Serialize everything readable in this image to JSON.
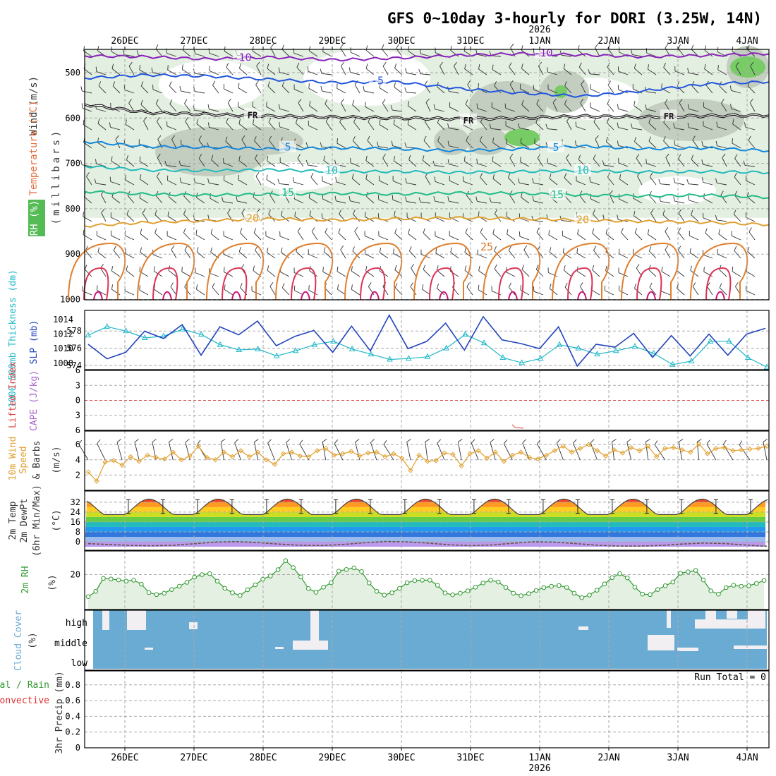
{
  "title": "GFS 0~10day 3-hourly for DORI (3.25W, 14N)",
  "year_label": "2026",
  "date_labels": [
    "26DEC",
    "27DEC",
    "28DEC",
    "29DEC",
    "30DEC",
    "31DEC",
    "1JAN",
    "2JAN",
    "3JAN",
    "4JAN"
  ],
  "panel_labels": {
    "wind": "Wind (m/s)",
    "temperature": "Temperature (°C)",
    "rh": "RH (%)",
    "millibars": "(millibars)",
    "thickness": "1000-500mb Thickness (dm)",
    "slp": "SLP (mb)",
    "lifted_index": "Lifted Index",
    "cape": "CAPE (J/kg)",
    "wind10_a": "10m Wind",
    "wind10_b": "Speed",
    "wind10_c": "& Barbs",
    "wind10_unit": "(m/s)",
    "temp2m_a": "2m Temp",
    "temp2m_b": "2m DewPt",
    "temp2m_c": "(6hr Min/Max)",
    "temp2m_unit": "(°C)",
    "rh2m": "2m RH",
    "rh2m_unit": "(%)",
    "cloud": "Cloud Cover",
    "cloud_unit": "(%)",
    "precip_a": "Total / Rain",
    "precip_b": "Convective",
    "precip_c": "3hr Precip (mm)",
    "run_total": "Run Total = 0"
  },
  "chart_data": [
    {
      "type": "line",
      "name": "upper-air cross-section",
      "ylabel": "(millibars)",
      "y_ticks": [
        500,
        600,
        700,
        800,
        900,
        1000
      ],
      "ylim": [
        450,
        1000
      ],
      "isotherm_labels": [
        "-10",
        "-10",
        "-5",
        "-5",
        "FR",
        "FR",
        "FR",
        "5",
        "5",
        "10",
        "10",
        "15",
        "15",
        "20",
        "20",
        "25"
      ],
      "isotherms": [
        {
          "value": "-10",
          "mb": [
            463,
            465,
            470,
            466,
            472,
            468,
            462,
            458,
            461,
            465,
            462,
            458
          ]
        },
        {
          "value": "-5",
          "mb": [
            512,
            505,
            508,
            515,
            522,
            520,
            535,
            545,
            552,
            540,
            525,
            520
          ]
        },
        {
          "value": "FR",
          "mb": [
            570,
            588,
            592,
            596,
            598,
            600,
            602,
            600,
            596,
            598,
            595,
            594
          ]
        },
        {
          "value": "5",
          "mb": [
            652,
            663,
            665,
            668,
            666,
            668,
            672,
            668,
            662,
            668,
            666,
            672
          ]
        },
        {
          "value": "10",
          "mb": [
            706,
            715,
            716,
            714,
            718,
            718,
            720,
            718,
            716,
            719,
            718,
            720
          ]
        },
        {
          "value": "15",
          "mb": [
            762,
            768,
            770,
            768,
            766,
            768,
            765,
            766,
            770,
            772,
            770,
            775
          ]
        },
        {
          "value": "20",
          "mb": [
            838,
            830,
            826,
            822,
            825,
            822,
            820,
            822,
            825,
            828,
            830,
            835
          ]
        }
      ]
    },
    {
      "type": "line",
      "name": "thickness and slp",
      "left_ticks": [
        574,
        576,
        578
      ],
      "right_ticks": [
        1008,
        1010,
        1012,
        1014
      ],
      "series": [
        {
          "name": "1000-500mb Thickness (dm)",
          "values": [
            577.5,
            578.5,
            578.0,
            577.2,
            577.4,
            578.2,
            577.6,
            576.4,
            575.8,
            575.9,
            575.1,
            575.7,
            576.4,
            576.8,
            575.9,
            575.3,
            574.7,
            574.8,
            575.0,
            576.0,
            577.6,
            576.6,
            574.9,
            574.3,
            574.8,
            576.4,
            576.0,
            575.3,
            575.7,
            576.2,
            575.4,
            574.1,
            574.5,
            576.8,
            576.8,
            574.9,
            573.8
          ]
        },
        {
          "name": "SLP (mb)",
          "values": [
            1010.6,
            1008.6,
            1009.5,
            1012.4,
            1011.4,
            1013.3,
            1009.1,
            1013.0,
            1011.9,
            1013.8,
            1010.4,
            1011.7,
            1012.5,
            1009.5,
            1013.1,
            1009.7,
            1014.6,
            1010.0,
            1011.0,
            1013.5,
            1009.8,
            1014.4,
            1011.2,
            1010.7,
            1010.0,
            1013.0,
            1007.6,
            1010.6,
            1010.2,
            1012.1,
            1008.8,
            1011.8,
            1009.0,
            1012.0,
            1009.1,
            1012.0,
            1012.8
          ]
        }
      ]
    },
    {
      "type": "line",
      "name": "lifted index and cape",
      "y_ticks": [
        -6,
        -3,
        0,
        3,
        6
      ],
      "ylim": [
        -6,
        6
      ],
      "series": [
        {
          "name": "Lifted Index",
          "values": []
        },
        {
          "name": "CAPE (J/kg)",
          "values": []
        }
      ]
    },
    {
      "type": "line",
      "name": "10m wind speed",
      "y_ticks": [
        2,
        4,
        6
      ],
      "ylim": [
        0,
        6.6
      ],
      "series": [
        {
          "name": "10m Wind Speed (m/s)",
          "values": [
            2.4,
            1.2,
            3.7,
            3.9,
            3.3,
            4.4,
            3.8,
            4.6,
            4.3,
            4.1,
            5.0,
            4.0,
            4.5,
            5.8,
            4.3,
            4.0,
            5.0,
            4.4,
            5.2,
            4.4,
            5.0,
            4.0,
            3.4,
            4.8,
            5.0,
            4.5,
            4.4,
            5.2,
            5.5,
            4.6,
            4.8,
            5.1,
            4.5,
            4.9,
            5.0,
            4.4,
            4.8,
            4.2,
            2.6,
            4.6,
            3.8,
            3.9,
            4.9,
            4.7,
            3.2,
            4.8,
            5.2,
            4.2,
            5.0,
            3.8,
            4.6,
            5.0,
            4.3,
            4.1,
            4.6,
            5.2,
            5.8,
            5.0,
            5.5,
            6.0,
            5.2,
            4.5,
            5.3,
            4.9,
            5.6,
            5.2,
            5.8,
            4.4,
            5.5,
            5.6,
            5.3,
            5.0,
            6.1,
            4.8,
            5.5,
            5.6,
            5.2,
            5.3,
            5.4,
            5.5,
            5.8
          ]
        }
      ]
    },
    {
      "type": "area",
      "name": "2m temperature and dewpoint",
      "y_ticks": [
        0,
        8,
        16,
        24,
        32
      ],
      "ylim": [
        -4,
        36
      ],
      "series": [
        {
          "name": "2m Temp (°C)",
          "min": 22,
          "max": 35,
          "cycle_days": 10
        },
        {
          "name": "2m DewPt (°C)",
          "values": [
            -1.5,
            -2.2,
            -2.9,
            -3.2,
            -2.8,
            -1.6,
            -0.2,
            0.1,
            -0.6,
            -1.9,
            -2.8,
            -3.0,
            -2.2,
            -0.8,
            0.2,
            0.0,
            -1.0,
            -2.4,
            -3.1,
            -2.6,
            -1.2,
            0.0,
            -0.3,
            -1.5,
            -2.8,
            -3.4,
            -3.5,
            -2.9,
            -1.8,
            -1.0,
            -1.4,
            -2.6,
            -3.6
          ]
        }
      ]
    },
    {
      "type": "line",
      "name": "2m relative humidity",
      "y_ticks": [
        20
      ],
      "ylim": [
        5,
        30
      ],
      "series": [
        {
          "name": "2m RH (%)",
          "values": [
            10.5,
            12.8,
            18.4,
            18.1,
            17.7,
            17.2,
            17.6,
            15.9,
            12.3,
            11.4,
            12.0,
            13.6,
            15.0,
            16.7,
            18.9,
            20.0,
            20.4,
            17.2,
            14.1,
            12.2,
            11.0,
            13.5,
            15.6,
            18.0,
            19.4,
            22.1,
            26.0,
            23.0,
            19.0,
            14.0,
            12.4,
            14.6,
            16.5,
            21.5,
            22.2,
            22.9,
            21.3,
            16.4,
            12.8,
            11.2,
            12.2,
            14.1,
            16.5,
            17.4,
            17.6,
            17.6,
            15.4,
            12.1,
            11.3,
            12.0,
            13.0,
            14.6,
            16.4,
            17.6,
            16.8,
            14.5,
            12.0,
            10.9,
            11.8,
            13.2,
            14.4,
            15.0,
            15.3,
            14.5,
            12.0,
            10.1,
            11.2,
            13.3,
            16.0,
            18.7,
            20.4,
            18.6,
            14.6,
            11.6,
            11.4,
            13.6,
            15.2,
            16.8,
            20.6,
            21.2,
            21.8,
            17.7,
            13.0,
            11.6,
            14.4,
            15.4,
            15.0,
            15.2,
            16.2,
            17.5
          ]
        }
      ]
    },
    {
      "type": "heatmap",
      "name": "cloud cover",
      "levels": [
        "high",
        "middle",
        "low"
      ]
    },
    {
      "type": "bar",
      "name": "3hr precip",
      "y_ticks": [
        0,
        0.2,
        0.4,
        0.6,
        0.8
      ],
      "ylim": [
        0,
        0.96
      ],
      "series": [
        {
          "name": "3hr Precip (mm)",
          "values": []
        }
      ]
    }
  ],
  "colors": {
    "rh_fill": "#e3efe0",
    "rh_mid": "#c4cec0",
    "rh_high": "#aebaaa",
    "rh_green": "#77cc66",
    "cloud_blue": "#6aabd3",
    "cloud_clear": "#f2eff2",
    "thickness": "#20b8c8",
    "slp": "#2244bb",
    "wind10": "#e0a030",
    "rh2m": "#339933"
  }
}
